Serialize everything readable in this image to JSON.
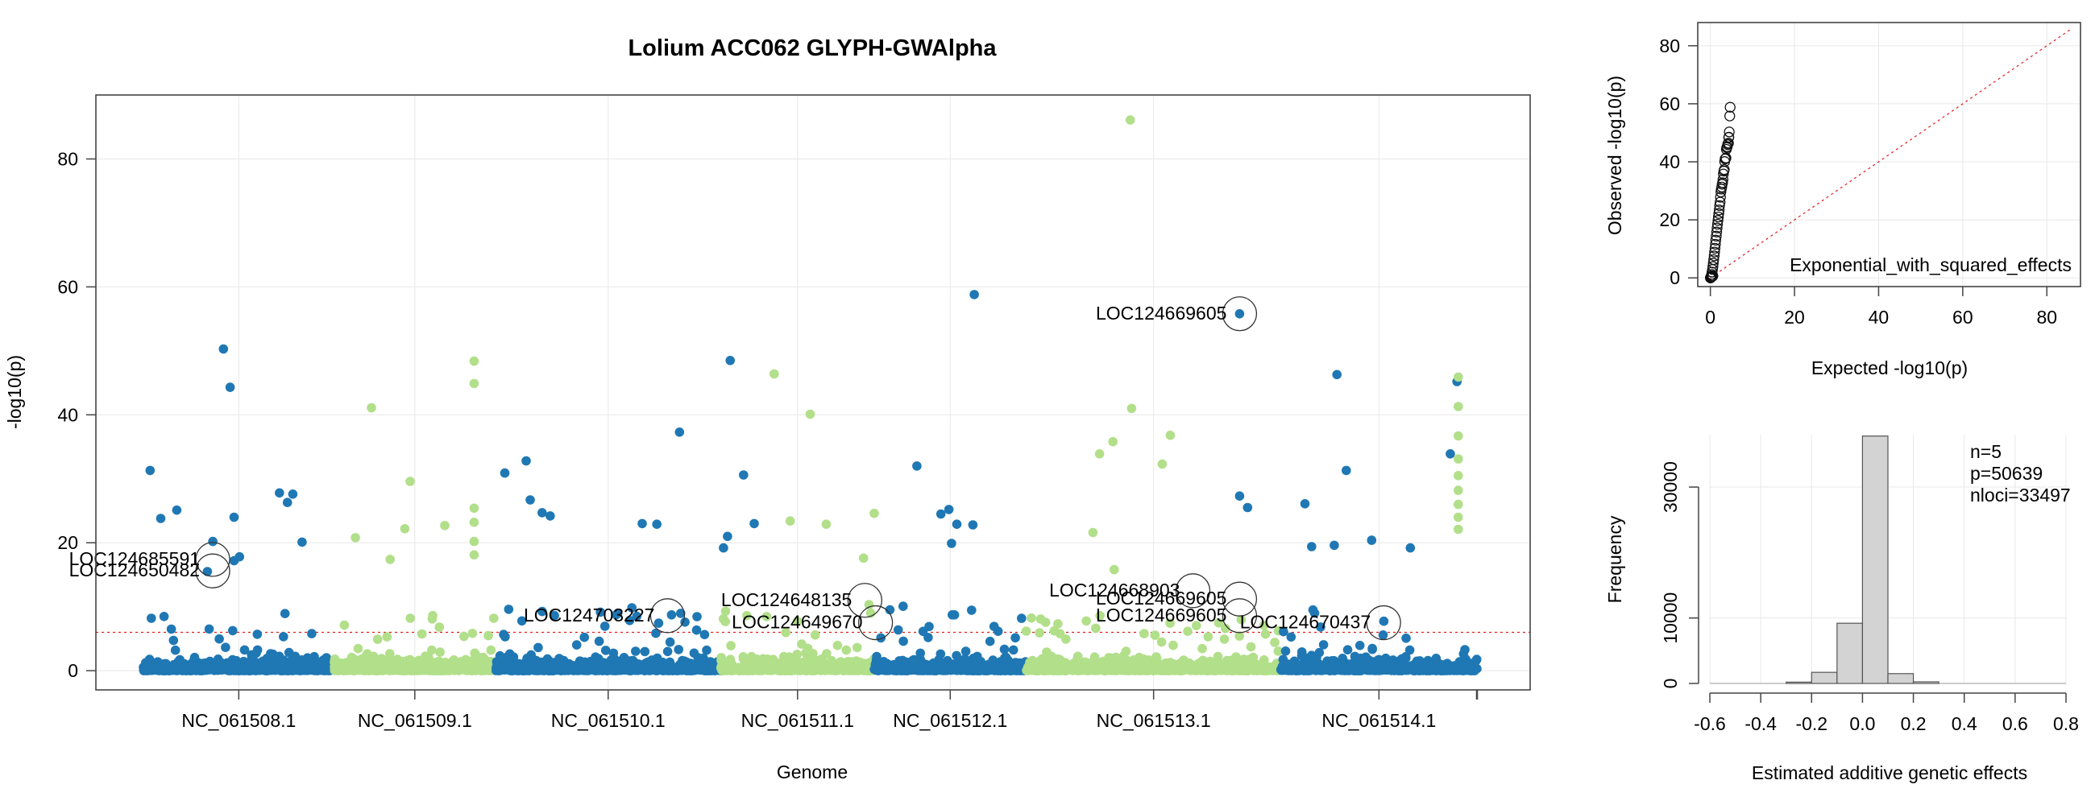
{
  "colors": {
    "dark": "#1f78b4",
    "light": "#b2df8a",
    "threshold": "#e31a1c",
    "grid": "#e8e8e8",
    "hist_bar": "#d3d3d3"
  },
  "chart_data": [
    {
      "type": "scatter",
      "title": "Lolium ACC062 GLYPH-GWAlpha",
      "xlabel": "Genome",
      "ylabel": "-log10(p)",
      "ylim": [
        -3,
        90
      ],
      "yticks": [
        0,
        20,
        40,
        60,
        80
      ],
      "grid": true,
      "chromosomes": [
        {
          "name": "NC_061508.1",
          "start": 0.0,
          "end": 0.143,
          "color": "dark"
        },
        {
          "name": "NC_061509.1",
          "start": 0.143,
          "end": 0.264,
          "color": "light"
        },
        {
          "name": "NC_061510.1",
          "start": 0.264,
          "end": 0.433,
          "color": "dark"
        },
        {
          "name": "NC_061511.1",
          "start": 0.433,
          "end": 0.548,
          "color": "light"
        },
        {
          "name": "NC_061512.1",
          "start": 0.548,
          "end": 0.662,
          "color": "dark"
        },
        {
          "name": "NC_061513.1",
          "start": 0.662,
          "end": 0.853,
          "color": "light"
        },
        {
          "name": "NC_061514.1",
          "start": 0.853,
          "end": 1.0,
          "color": "dark"
        }
      ],
      "threshold": 6,
      "notable_points": [
        {
          "x": 0.005,
          "y": 31.3,
          "c": "dark"
        },
        {
          "x": 0.013,
          "y": 23.8,
          "c": "dark"
        },
        {
          "x": 0.025,
          "y": 25.1,
          "c": "dark"
        },
        {
          "x": 0.052,
          "y": 20.2,
          "c": "dark"
        },
        {
          "x": 0.06,
          "y": 50.3,
          "c": "dark"
        },
        {
          "x": 0.065,
          "y": 44.3,
          "c": "dark"
        },
        {
          "x": 0.068,
          "y": 24.0,
          "c": "dark"
        },
        {
          "x": 0.102,
          "y": 27.8,
          "c": "dark"
        },
        {
          "x": 0.112,
          "y": 27.6,
          "c": "dark"
        },
        {
          "x": 0.108,
          "y": 26.3,
          "c": "dark"
        },
        {
          "x": 0.119,
          "y": 20.1,
          "c": "dark"
        },
        {
          "x": 0.072,
          "y": 17.8,
          "c": "dark"
        },
        {
          "x": 0.068,
          "y": 17.2,
          "c": "dark"
        },
        {
          "x": 0.048,
          "y": 15.5,
          "c": "dark"
        },
        {
          "x": 0.171,
          "y": 41.1,
          "c": "light"
        },
        {
          "x": 0.159,
          "y": 20.8,
          "c": "light"
        },
        {
          "x": 0.185,
          "y": 17.4,
          "c": "light"
        },
        {
          "x": 0.2,
          "y": 29.6,
          "c": "light"
        },
        {
          "x": 0.196,
          "y": 22.2,
          "c": "light"
        },
        {
          "x": 0.248,
          "y": 48.4,
          "c": "light"
        },
        {
          "x": 0.248,
          "y": 44.9,
          "c": "light"
        },
        {
          "x": 0.248,
          "y": 25.4,
          "c": "light"
        },
        {
          "x": 0.248,
          "y": 23.2,
          "c": "light"
        },
        {
          "x": 0.248,
          "y": 20.2,
          "c": "light"
        },
        {
          "x": 0.248,
          "y": 18.1,
          "c": "light"
        },
        {
          "x": 0.226,
          "y": 22.7,
          "c": "light"
        },
        {
          "x": 0.271,
          "y": 30.9,
          "c": "dark"
        },
        {
          "x": 0.287,
          "y": 32.8,
          "c": "dark"
        },
        {
          "x": 0.29,
          "y": 26.7,
          "c": "dark"
        },
        {
          "x": 0.299,
          "y": 24.7,
          "c": "dark"
        },
        {
          "x": 0.305,
          "y": 24.2,
          "c": "dark"
        },
        {
          "x": 0.374,
          "y": 23.0,
          "c": "dark"
        },
        {
          "x": 0.385,
          "y": 22.9,
          "c": "dark"
        },
        {
          "x": 0.402,
          "y": 37.3,
          "c": "dark"
        },
        {
          "x": 0.44,
          "y": 48.5,
          "c": "dark"
        },
        {
          "x": 0.45,
          "y": 30.6,
          "c": "dark"
        },
        {
          "x": 0.458,
          "y": 23.0,
          "c": "dark"
        },
        {
          "x": 0.438,
          "y": 21.0,
          "c": "dark"
        },
        {
          "x": 0.435,
          "y": 19.2,
          "c": "dark"
        },
        {
          "x": 0.473,
          "y": 46.4,
          "c": "light"
        },
        {
          "x": 0.5,
          "y": 40.1,
          "c": "light"
        },
        {
          "x": 0.485,
          "y": 23.4,
          "c": "light"
        },
        {
          "x": 0.512,
          "y": 22.9,
          "c": "light"
        },
        {
          "x": 0.548,
          "y": 24.6,
          "c": "light"
        },
        {
          "x": 0.54,
          "y": 17.6,
          "c": "light"
        },
        {
          "x": 0.58,
          "y": 32.0,
          "c": "dark"
        },
        {
          "x": 0.598,
          "y": 24.5,
          "c": "dark"
        },
        {
          "x": 0.604,
          "y": 25.2,
          "c": "dark"
        },
        {
          "x": 0.61,
          "y": 22.9,
          "c": "dark"
        },
        {
          "x": 0.622,
          "y": 22.8,
          "c": "dark"
        },
        {
          "x": 0.606,
          "y": 19.9,
          "c": "dark"
        },
        {
          "x": 0.623,
          "y": 58.8,
          "c": "dark"
        },
        {
          "x": 0.74,
          "y": 86.1,
          "c": "light"
        },
        {
          "x": 0.741,
          "y": 41.0,
          "c": "light"
        },
        {
          "x": 0.717,
          "y": 33.9,
          "c": "light"
        },
        {
          "x": 0.727,
          "y": 35.8,
          "c": "light"
        },
        {
          "x": 0.77,
          "y": 36.8,
          "c": "light"
        },
        {
          "x": 0.764,
          "y": 32.3,
          "c": "light"
        },
        {
          "x": 0.712,
          "y": 21.6,
          "c": "light"
        },
        {
          "x": 0.728,
          "y": 15.8,
          "c": "light"
        },
        {
          "x": 0.822,
          "y": 55.8,
          "c": "dark"
        },
        {
          "x": 0.822,
          "y": 27.3,
          "c": "dark"
        },
        {
          "x": 0.828,
          "y": 25.5,
          "c": "dark"
        },
        {
          "x": 0.895,
          "y": 46.3,
          "c": "dark"
        },
        {
          "x": 0.902,
          "y": 31.3,
          "c": "dark"
        },
        {
          "x": 0.871,
          "y": 26.1,
          "c": "dark"
        },
        {
          "x": 0.876,
          "y": 19.4,
          "c": "dark"
        },
        {
          "x": 0.893,
          "y": 19.6,
          "c": "dark"
        },
        {
          "x": 0.921,
          "y": 20.4,
          "c": "dark"
        },
        {
          "x": 0.95,
          "y": 19.2,
          "c": "dark"
        },
        {
          "x": 0.98,
          "y": 33.9,
          "c": "dark"
        },
        {
          "x": 0.985,
          "y": 45.2,
          "c": "dark"
        },
        {
          "x": 0.986,
          "y": 45.9,
          "c": "light"
        },
        {
          "x": 0.986,
          "y": 41.3,
          "c": "light"
        },
        {
          "x": 0.986,
          "y": 36.7,
          "c": "light"
        },
        {
          "x": 0.986,
          "y": 33.1,
          "c": "light"
        },
        {
          "x": 0.986,
          "y": 30.5,
          "c": "light"
        },
        {
          "x": 0.986,
          "y": 28.2,
          "c": "light"
        },
        {
          "x": 0.986,
          "y": 26.0,
          "c": "light"
        },
        {
          "x": 0.986,
          "y": 24.0,
          "c": "light"
        },
        {
          "x": 0.986,
          "y": 22.1,
          "c": "light"
        }
      ],
      "annotations": [
        {
          "label": "LOC124685591",
          "x": 0.052,
          "y": 17.4,
          "label_side": "left"
        },
        {
          "label": "LOC124650482",
          "x": 0.052,
          "y": 15.6,
          "label_side": "left"
        },
        {
          "label": "LOC124703227",
          "x": 0.393,
          "y": 8.6,
          "label_side": "left"
        },
        {
          "label": "LOC124648135",
          "x": 0.541,
          "y": 11.0,
          "label_side": "left"
        },
        {
          "label": "LOC124649670",
          "x": 0.549,
          "y": 7.5,
          "label_side": "left"
        },
        {
          "label": "LOC124669605",
          "x": 0.822,
          "y": 55.8,
          "label_side": "left"
        },
        {
          "label": "LOC124668903",
          "x": 0.787,
          "y": 12.5,
          "label_side": "left"
        },
        {
          "label": "LOC124669605",
          "x": 0.822,
          "y": 11.2,
          "label_side": "left"
        },
        {
          "label": "LOC124669605",
          "x": 0.822,
          "y": 8.6,
          "label_side": "left"
        },
        {
          "label": "LOC124670437",
          "x": 0.93,
          "y": 7.5,
          "label_side": "left"
        }
      ]
    },
    {
      "type": "scatter",
      "subtype": "qq",
      "xlabel": "Expected -log10(p)",
      "ylabel": "Observed -log10(p)",
      "xlim": [
        -3,
        88
      ],
      "ylim": [
        -3,
        88
      ],
      "xticks": [
        0,
        20,
        40,
        60,
        80
      ],
      "yticks": [
        0,
        20,
        40,
        60,
        80
      ],
      "legend": "Exponential_with_squared_effects",
      "legend_position": "bottom-right",
      "reference_line": [
        [
          0,
          0
        ],
        [
          86,
          86
        ]
      ],
      "observed_tail": [
        [
          4.7,
          58.8
        ],
        [
          4.6,
          55.8
        ],
        [
          4.5,
          50.3
        ],
        [
          4.4,
          48.5
        ],
        [
          4.35,
          48.4
        ],
        [
          4.3,
          46.4
        ],
        [
          4.2,
          46.3
        ],
        [
          4.1,
          45.9
        ],
        [
          4.0,
          45.2
        ],
        [
          3.9,
          44.9
        ],
        [
          3.8,
          44.3
        ],
        [
          3.7,
          41.3
        ],
        [
          3.6,
          41.1
        ],
        [
          3.5,
          41.0
        ],
        [
          3.4,
          40.1
        ],
        [
          3.3,
          37.3
        ],
        [
          3.2,
          36.8
        ],
        [
          3.1,
          35.8
        ],
        [
          3.0,
          33.9
        ],
        [
          2.9,
          32.8
        ],
        [
          2.8,
          32.3
        ],
        [
          2.7,
          31.3
        ],
        [
          2.6,
          30.6
        ],
        [
          2.5,
          29.6
        ],
        [
          2.4,
          27.8
        ],
        [
          2.3,
          26.1
        ],
        [
          2.2,
          24.9
        ],
        [
          2.1,
          23.4
        ],
        [
          2.0,
          22.2
        ],
        [
          1.9,
          21.0
        ],
        [
          1.8,
          19.8
        ],
        [
          1.7,
          18.5
        ],
        [
          1.6,
          17.2
        ],
        [
          1.5,
          15.8
        ],
        [
          1.4,
          14.4
        ],
        [
          1.3,
          13.0
        ],
        [
          1.2,
          11.6
        ],
        [
          1.1,
          10.2
        ],
        [
          1.0,
          8.9
        ],
        [
          0.9,
          7.6
        ],
        [
          0.8,
          6.3
        ],
        [
          0.7,
          5.1
        ],
        [
          0.6,
          3.9
        ],
        [
          0.5,
          2.9
        ],
        [
          0.4,
          2.0
        ],
        [
          0.3,
          1.2
        ],
        [
          0.2,
          0.6
        ],
        [
          0.1,
          0.2
        ],
        [
          0.05,
          0.05
        ]
      ]
    },
    {
      "type": "bar",
      "subtype": "histogram",
      "xlabel": "Estimated additive genetic effects",
      "ylabel": "Frequency",
      "xlim": [
        -0.6,
        0.8
      ],
      "ylim": [
        0,
        38000
      ],
      "xticks": [
        "-0.6",
        "-0.4",
        "-0.2",
        "0.0",
        "0.2",
        "0.4",
        "0.6",
        "0.8"
      ],
      "xtick_values": [
        -0.6,
        -0.4,
        -0.2,
        0.0,
        0.2,
        0.4,
        0.6,
        0.8
      ],
      "yticks": [
        0,
        10000,
        30000
      ],
      "bins": [
        {
          "from": -0.3,
          "to": -0.2,
          "count": 200
        },
        {
          "from": -0.2,
          "to": -0.1,
          "count": 1700
        },
        {
          "from": -0.1,
          "to": 0.0,
          "count": 9200
        },
        {
          "from": 0.0,
          "to": 0.1,
          "count": 37800
        },
        {
          "from": 0.1,
          "to": 0.2,
          "count": 1500
        },
        {
          "from": 0.2,
          "to": 0.3,
          "count": 250
        }
      ],
      "stats": [
        "n=5",
        "p=50639",
        "nloci=33497"
      ]
    }
  ]
}
